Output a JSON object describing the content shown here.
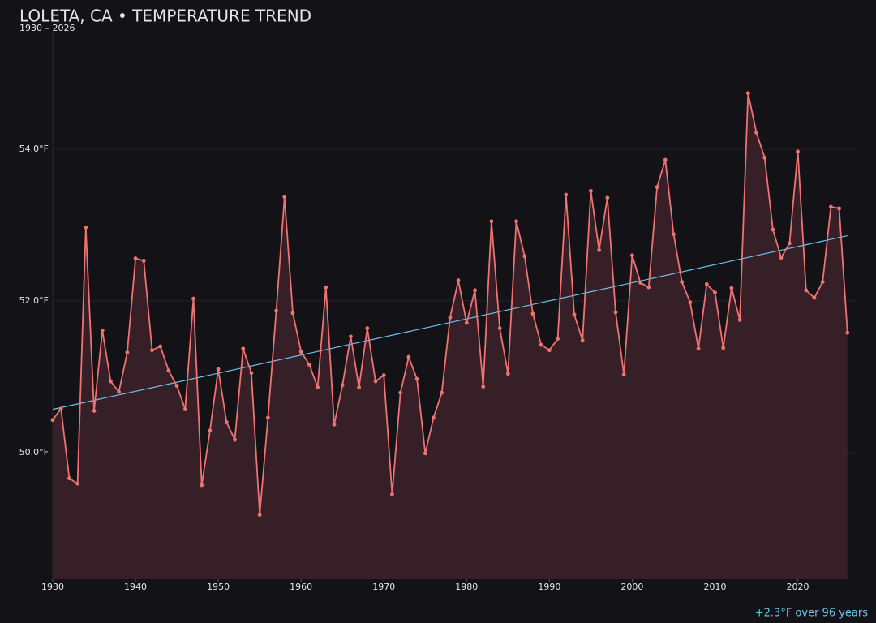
{
  "chart_data": {
    "type": "line",
    "title": "LOLETA, CA • TEMPERATURE TREND",
    "subtitle": "1930 – 2026",
    "annotation": "+2.3°F over 96 years",
    "x": [
      1930,
      1931,
      1932,
      1933,
      1934,
      1935,
      1936,
      1937,
      1938,
      1939,
      1940,
      1941,
      1942,
      1943,
      1944,
      1945,
      1946,
      1947,
      1948,
      1949,
      1950,
      1951,
      1952,
      1953,
      1954,
      1955,
      1956,
      1957,
      1958,
      1959,
      1960,
      1961,
      1962,
      1963,
      1964,
      1965,
      1966,
      1967,
      1968,
      1969,
      1970,
      1971,
      1972,
      1973,
      1974,
      1975,
      1976,
      1977,
      1978,
      1979,
      1980,
      1981,
      1982,
      1983,
      1984,
      1985,
      1986,
      1987,
      1988,
      1989,
      1990,
      1991,
      1992,
      1993,
      1994,
      1995,
      1996,
      1997,
      1998,
      1999,
      2000,
      2001,
      2002,
      2003,
      2004,
      2005,
      2006,
      2007,
      2008,
      2009,
      2010,
      2011,
      2012,
      2013,
      2014,
      2015,
      2016,
      2017,
      2018,
      2019,
      2020,
      2021,
      2022,
      2023,
      2024,
      2025,
      2026
    ],
    "series": [
      {
        "name": "Temperature",
        "color": "#f07272",
        "fill": "#361f26",
        "values": [
          50.43,
          50.58,
          49.66,
          49.59,
          52.97,
          50.55,
          51.61,
          50.94,
          50.8,
          51.32,
          52.56,
          52.53,
          51.35,
          51.4,
          51.08,
          50.88,
          50.57,
          52.03,
          49.57,
          50.29,
          51.1,
          50.4,
          50.17,
          51.37,
          51.05,
          49.18,
          50.46,
          51.87,
          53.37,
          51.84,
          51.33,
          51.16,
          50.86,
          52.18,
          50.37,
          50.89,
          51.53,
          50.86,
          51.64,
          50.94,
          51.02,
          49.45,
          50.79,
          51.26,
          50.97,
          49.99,
          50.46,
          50.79,
          51.78,
          52.27,
          51.71,
          52.14,
          50.87,
          53.05,
          51.64,
          51.04,
          53.05,
          52.59,
          51.83,
          51.42,
          51.35,
          51.5,
          53.4,
          51.82,
          51.48,
          53.45,
          52.67,
          53.36,
          51.85,
          51.03,
          52.6,
          52.24,
          52.18,
          53.5,
          53.86,
          52.88,
          52.25,
          51.98,
          51.37,
          52.22,
          52.11,
          51.38,
          52.17,
          51.75,
          54.74,
          54.22,
          53.89,
          52.94,
          52.57,
          52.76,
          53.97,
          52.14,
          52.04,
          52.25,
          53.24,
          53.22,
          51.58
        ]
      }
    ],
    "trend": {
      "color": "#6ec6f0",
      "x": [
        1930,
        2026
      ],
      "values": [
        50.57,
        52.86
      ]
    },
    "xlim": [
      1930,
      2027
    ],
    "xticks": [
      1930,
      1940,
      1950,
      1960,
      1970,
      1980,
      1990,
      2000,
      2010,
      2020
    ],
    "ylim": [
      48.33,
      55.54
    ],
    "yticks": [
      {
        "value": 50,
        "label": "50.0°F"
      },
      {
        "value": 52,
        "label": "52.0°F"
      },
      {
        "value": 54,
        "label": "54.0°F"
      }
    ],
    "grid": true
  }
}
